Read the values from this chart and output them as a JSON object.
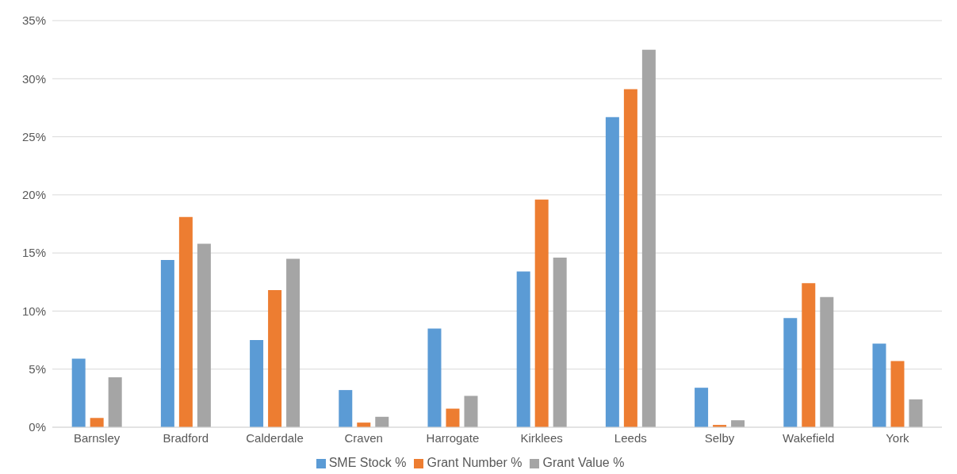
{
  "chart_data": {
    "type": "bar",
    "categories": [
      "Barnsley",
      "Bradford",
      "Calderdale",
      "Craven",
      "Harrogate",
      "Kirklees",
      "Leeds",
      "Selby",
      "Wakefield",
      "York"
    ],
    "series": [
      {
        "name": "SME Stock %",
        "color": "#5b9bd5",
        "values": [
          5.9,
          14.4,
          7.5,
          3.2,
          8.5,
          13.4,
          26.7,
          3.4,
          9.4,
          7.2
        ]
      },
      {
        "name": "Grant Number %",
        "color": "#ed7d31",
        "values": [
          0.8,
          18.1,
          11.8,
          0.4,
          1.6,
          19.6,
          29.1,
          0.2,
          12.4,
          5.7
        ]
      },
      {
        "name": "Grant Value %",
        "color": "#a5a5a5",
        "values": [
          4.3,
          15.8,
          14.5,
          0.9,
          2.7,
          14.6,
          32.5,
          0.6,
          11.2,
          2.4
        ]
      }
    ],
    "ylim": [
      0,
      35
    ],
    "yticks": [
      {
        "value": 0,
        "label": "0%"
      },
      {
        "value": 5,
        "label": "5%"
      },
      {
        "value": 10,
        "label": "10%"
      },
      {
        "value": 15,
        "label": "15%"
      },
      {
        "value": 20,
        "label": "20%"
      },
      {
        "value": 25,
        "label": "25%"
      },
      {
        "value": 30,
        "label": "30%"
      },
      {
        "value": 35,
        "label": "35%"
      }
    ],
    "grid": "y",
    "legend": "bottom"
  }
}
